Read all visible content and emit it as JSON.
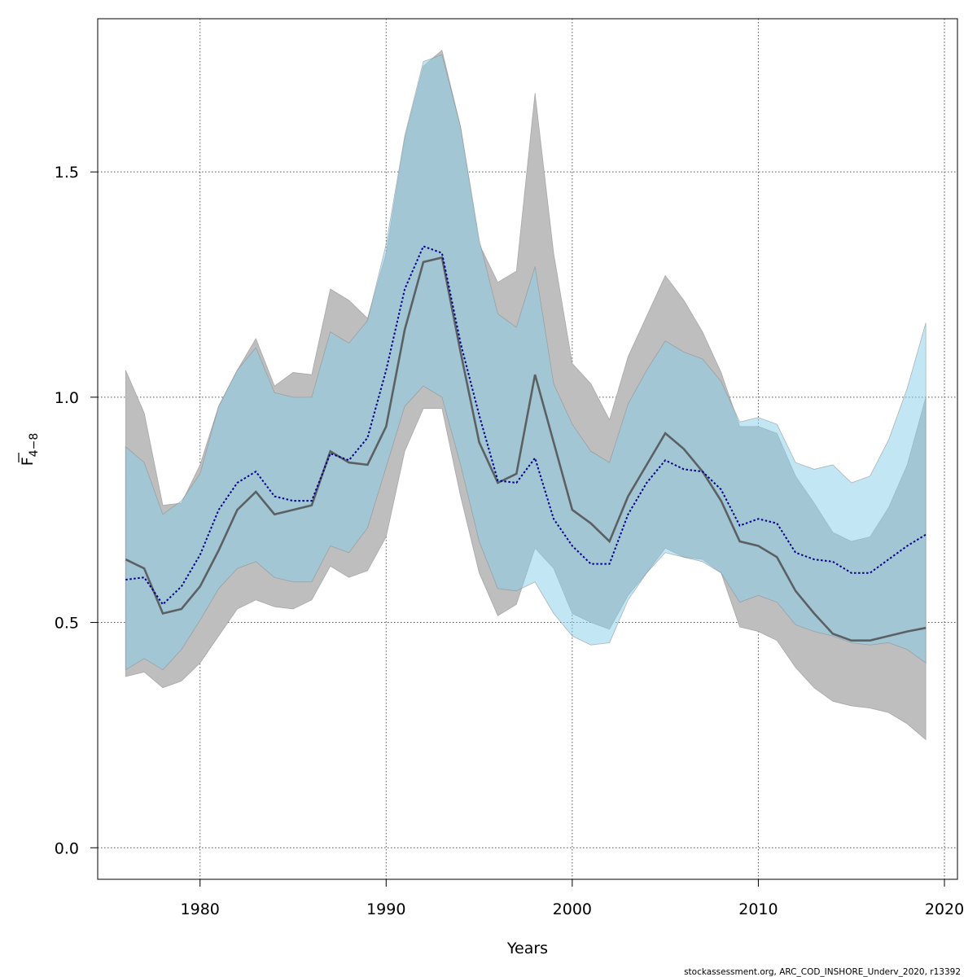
{
  "chart_data": {
    "type": "area",
    "xlabel": "Years",
    "ylabel_main": "F",
    "ylabel_sub": "4−8",
    "xlim": [
      1974.5,
      2020.7
    ],
    "ylim": [
      -0.07,
      1.84
    ],
    "x_ticks": [
      1980,
      1990,
      2000,
      2010,
      2020
    ],
    "y_ticks": [
      0.0,
      0.5,
      1.0,
      1.5
    ],
    "y_tick_labels": [
      "0.0",
      "0.5",
      "1.0",
      "1.5"
    ],
    "grid": true,
    "colors": {
      "grey_band": "#bebebe",
      "blue_band": "#87ceeb",
      "solid_line": "#4f4f4f",
      "dotted_line": "#00008b"
    },
    "years": [
      1976,
      1977,
      1978,
      1979,
      1980,
      1981,
      1982,
      1983,
      1984,
      1985,
      1986,
      1987,
      1988,
      1989,
      1990,
      1991,
      1992,
      1993,
      1994,
      1995,
      1996,
      1997,
      1998,
      1999,
      2000,
      2001,
      2002,
      2003,
      2004,
      2005,
      2006,
      2007,
      2008,
      2009,
      2010,
      2011,
      2012,
      2013,
      2014,
      2015,
      2016,
      2017,
      2018,
      2019
    ],
    "series": [
      {
        "estimate": [
          0.64,
          0.62,
          0.52,
          0.53,
          0.58,
          0.66,
          0.75,
          0.79,
          0.74,
          0.75,
          0.76,
          0.88,
          0.855,
          0.85,
          0.935,
          1.15,
          1.3,
          1.31,
          1.1,
          0.9,
          0.81,
          0.83,
          1.05,
          0.9,
          0.75,
          0.72,
          0.68,
          0.78,
          0.85,
          0.92,
          0.885,
          0.835,
          0.77,
          0.68,
          0.67,
          0.645,
          0.57,
          0.52,
          0.475,
          0.46,
          0.46,
          0.47,
          0.48,
          0.488
        ],
        "lower": [
          0.38,
          0.39,
          0.355,
          0.37,
          0.41,
          0.47,
          0.53,
          0.55,
          0.535,
          0.53,
          0.55,
          0.625,
          0.6,
          0.615,
          0.69,
          0.88,
          0.975,
          0.975,
          0.78,
          0.61,
          0.515,
          0.54,
          0.665,
          0.62,
          0.52,
          0.5,
          0.485,
          0.56,
          0.61,
          0.665,
          0.645,
          0.64,
          0.61,
          0.49,
          0.48,
          0.46,
          0.4,
          0.355,
          0.325,
          0.315,
          0.31,
          0.3,
          0.275,
          0.24
        ],
        "upper": [
          1.06,
          0.965,
          0.76,
          0.765,
          0.85,
          0.98,
          1.06,
          1.13,
          1.025,
          1.055,
          1.05,
          1.24,
          1.215,
          1.175,
          1.32,
          1.575,
          1.735,
          1.77,
          1.6,
          1.34,
          1.255,
          1.28,
          1.675,
          1.32,
          1.075,
          1.03,
          0.95,
          1.09,
          1.18,
          1.27,
          1.215,
          1.145,
          1.055,
          0.935,
          0.935,
          0.92,
          0.825,
          0.765,
          0.7,
          0.68,
          0.69,
          0.755,
          0.85,
          1.0
        ]
      },
      {
        "estimate": [
          0.595,
          0.6,
          0.54,
          0.58,
          0.65,
          0.75,
          0.81,
          0.835,
          0.78,
          0.77,
          0.77,
          0.875,
          0.86,
          0.91,
          1.06,
          1.24,
          1.335,
          1.32,
          1.12,
          0.96,
          0.815,
          0.81,
          0.865,
          0.73,
          0.67,
          0.63,
          0.63,
          0.74,
          0.81,
          0.86,
          0.84,
          0.835,
          0.795,
          0.715,
          0.73,
          0.72,
          0.655,
          0.64,
          0.635,
          0.61,
          0.61,
          0.64,
          0.67,
          0.695
        ],
        "lower": [
          0.395,
          0.42,
          0.395,
          0.44,
          0.505,
          0.575,
          0.62,
          0.635,
          0.6,
          0.59,
          0.59,
          0.67,
          0.655,
          0.71,
          0.845,
          0.98,
          1.025,
          1.0,
          0.85,
          0.68,
          0.575,
          0.57,
          0.59,
          0.52,
          0.47,
          0.45,
          0.455,
          0.55,
          0.61,
          0.655,
          0.645,
          0.635,
          0.61,
          0.545,
          0.56,
          0.545,
          0.495,
          0.48,
          0.47,
          0.455,
          0.45,
          0.455,
          0.44,
          0.41
        ],
        "upper": [
          0.89,
          0.855,
          0.74,
          0.77,
          0.83,
          0.98,
          1.06,
          1.11,
          1.01,
          1.0,
          1.0,
          1.145,
          1.12,
          1.17,
          1.34,
          1.58,
          1.745,
          1.76,
          1.6,
          1.35,
          1.185,
          1.155,
          1.29,
          1.03,
          0.94,
          0.88,
          0.855,
          0.985,
          1.06,
          1.125,
          1.1,
          1.085,
          1.035,
          0.945,
          0.955,
          0.94,
          0.855,
          0.84,
          0.85,
          0.81,
          0.825,
          0.905,
          1.02,
          1.165
        ]
      }
    ]
  },
  "footer_text": "stockassessment.org, ARC_COD_INSHORE_Underv_2020, r13392"
}
